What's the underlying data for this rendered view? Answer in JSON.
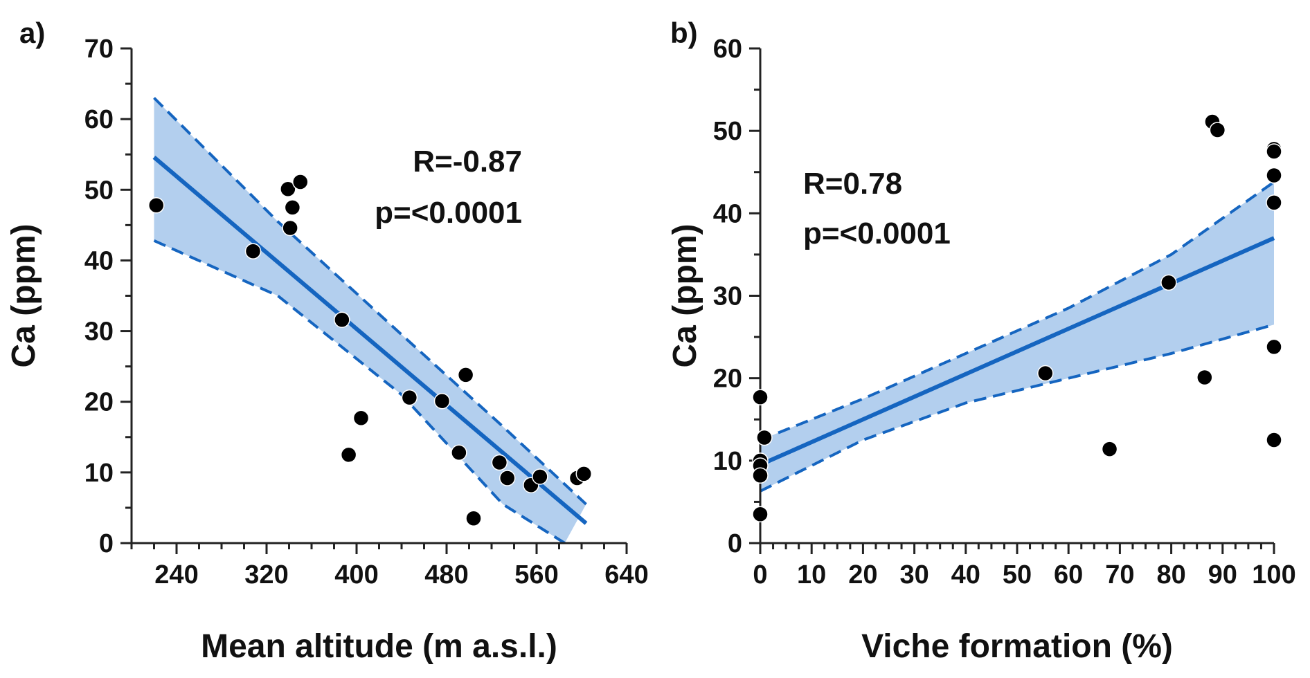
{
  "colors": {
    "accent": "#1565c0",
    "band_fill": "#b3cfee",
    "point": "#000000",
    "axis": "#222222"
  },
  "chart_data": [
    {
      "type": "scatter",
      "panel_label": "a)",
      "title": "",
      "xlabel": "Mean altitude (m a.s.l.)",
      "ylabel": "Ca (ppm)",
      "xlim": [
        200,
        640
      ],
      "ylim": [
        0,
        70
      ],
      "x_ticks": [
        240,
        320,
        400,
        480,
        560,
        640
      ],
      "x_minor_step": 20,
      "y_ticks": [
        0,
        10,
        20,
        30,
        40,
        50,
        60,
        70
      ],
      "y_minor_step": 5,
      "annotations": [
        "R=-0.87",
        "p=<0.0001"
      ],
      "points": [
        {
          "x": 222,
          "y": 47.8
        },
        {
          "x": 308,
          "y": 41.3
        },
        {
          "x": 339,
          "y": 50.1
        },
        {
          "x": 341,
          "y": 44.6
        },
        {
          "x": 343,
          "y": 47.5
        },
        {
          "x": 350,
          "y": 51.1
        },
        {
          "x": 387,
          "y": 31.6
        },
        {
          "x": 393,
          "y": 12.5
        },
        {
          "x": 404,
          "y": 17.7
        },
        {
          "x": 447,
          "y": 20.6
        },
        {
          "x": 476,
          "y": 20.1
        },
        {
          "x": 491,
          "y": 12.8
        },
        {
          "x": 497,
          "y": 23.8
        },
        {
          "x": 504,
          "y": 3.5
        },
        {
          "x": 527,
          "y": 11.4
        },
        {
          "x": 534,
          "y": 9.2
        },
        {
          "x": 555,
          "y": 8.2
        },
        {
          "x": 563,
          "y": 9.4
        },
        {
          "x": 596,
          "y": 9.2
        },
        {
          "x": 602,
          "y": 9.8
        }
      ],
      "fit": {
        "x": [
          220,
          604
        ],
        "y": [
          54.6,
          2.8
        ]
      },
      "band_upper": {
        "x": [
          220,
          330,
          440,
          530,
          604
        ],
        "y": [
          63.0,
          45.5,
          29.5,
          16.5,
          5.5
        ]
      },
      "band_lower": {
        "x": [
          220,
          330,
          440,
          530,
          585
        ],
        "y": [
          42.8,
          35.0,
          21.0,
          5.5,
          0.0
        ]
      }
    },
    {
      "type": "scatter",
      "panel_label": "b)",
      "title": "",
      "xlabel": "Viche formation (%)",
      "ylabel": "Ca (ppm)",
      "xlim": [
        0,
        100
      ],
      "ylim": [
        0,
        60
      ],
      "x_ticks": [
        0,
        10,
        20,
        30,
        40,
        50,
        60,
        70,
        80,
        90,
        100
      ],
      "x_minor_step": 2.5,
      "y_ticks": [
        0,
        10,
        20,
        30,
        40,
        50,
        60
      ],
      "y_minor_step": 5,
      "annotations": [
        "R=0.78",
        "p=<0.0001"
      ],
      "points": [
        {
          "x": 0,
          "y": 17.7
        },
        {
          "x": 0.8,
          "y": 12.8
        },
        {
          "x": 0,
          "y": 10.0
        },
        {
          "x": 0,
          "y": 9.4
        },
        {
          "x": 0,
          "y": 8.2
        },
        {
          "x": 0,
          "y": 3.5
        },
        {
          "x": 55.5,
          "y": 20.6
        },
        {
          "x": 68,
          "y": 11.4
        },
        {
          "x": 79.5,
          "y": 31.6
        },
        {
          "x": 86.5,
          "y": 20.1
        },
        {
          "x": 88,
          "y": 51.1
        },
        {
          "x": 89,
          "y": 50.1
        },
        {
          "x": 100,
          "y": 47.8
        },
        {
          "x": 100,
          "y": 47.5
        },
        {
          "x": 100,
          "y": 44.6
        },
        {
          "x": 100,
          "y": 41.3
        },
        {
          "x": 100,
          "y": 23.8
        },
        {
          "x": 100,
          "y": 12.5
        }
      ],
      "fit": {
        "x": [
          0,
          100
        ],
        "y": [
          9.5,
          37.0
        ]
      },
      "band_upper": {
        "x": [
          0,
          20,
          40,
          60,
          80,
          100
        ],
        "y": [
          12.5,
          17.5,
          23.0,
          28.5,
          35.0,
          43.8
        ]
      },
      "band_lower": {
        "x": [
          0,
          20,
          40,
          60,
          80,
          100
        ],
        "y": [
          6.3,
          12.5,
          17.0,
          20.0,
          23.0,
          26.5
        ]
      }
    }
  ]
}
